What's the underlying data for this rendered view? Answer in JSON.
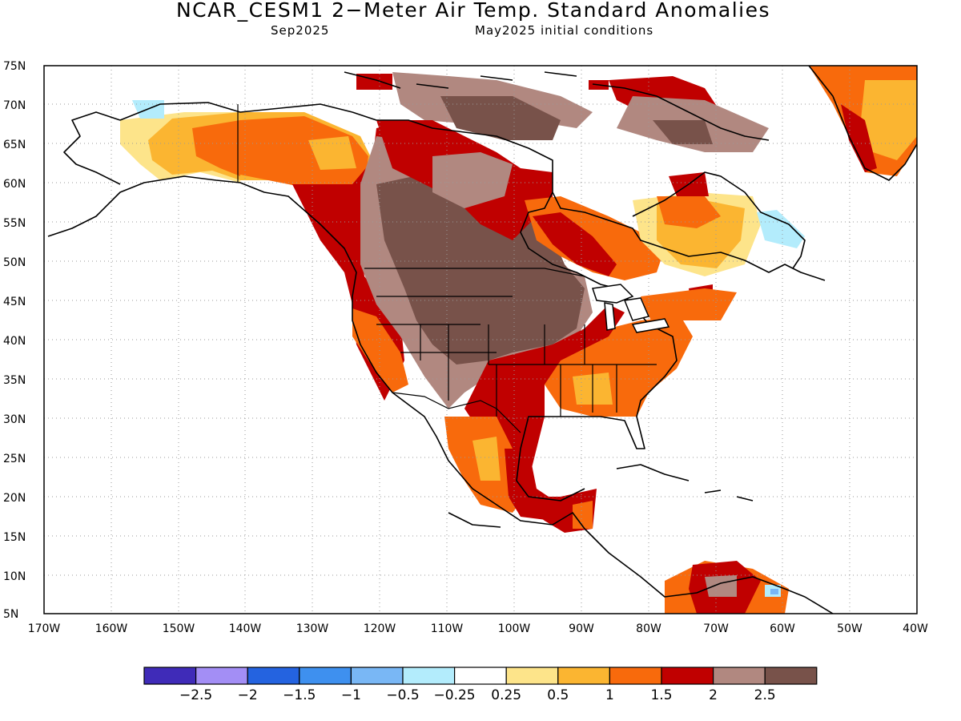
{
  "title": "NCAR_CESM1 2−Meter Air Temp. Standard Anomalies",
  "subtitle_left": "Sep2025",
  "subtitle_right": "May2025 initial conditions",
  "axes": {
    "lat_labels": [
      "75N",
      "70N",
      "65N",
      "60N",
      "55N",
      "50N",
      "45N",
      "40N",
      "35N",
      "30N",
      "25N",
      "20N",
      "15N",
      "10N",
      "5N"
    ],
    "lon_labels": [
      "170W",
      "160W",
      "150W",
      "140W",
      "130W",
      "120W",
      "110W",
      "100W",
      "90W",
      "80W",
      "70W",
      "60W",
      "50W",
      "40W"
    ],
    "grid": "dotted"
  },
  "colorbar": {
    "colors": [
      "#3f2bb8",
      "#a38ef5",
      "#2463e0",
      "#3e90ef",
      "#79b7f5",
      "#b3ecfc",
      "#ffffff",
      "#fde48a",
      "#fbb531",
      "#f86a0c",
      "#c00000",
      "#b18880",
      "#78524a"
    ],
    "labels": [
      "−2.5",
      "−2",
      "−1.5",
      "−1",
      "−0.5",
      "−0.25",
      "0.25",
      "0.5",
      "1",
      "1.5",
      "2",
      "2.5"
    ]
  },
  "anomaly_colors": {
    "brown_dark": "#78524a",
    "brown_light": "#b18880",
    "red": "#c00000",
    "orange": "#f86a0c",
    "orange_light": "#fbb531",
    "yellow": "#fde48a",
    "cyan": "#b3ecfc",
    "blue": "#79b7f5"
  }
}
